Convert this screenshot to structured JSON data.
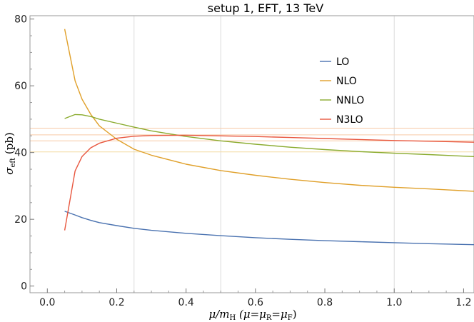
{
  "chart_data": {
    "type": "line",
    "title": "setup 1, EFT, 13 TeV",
    "xlabel_parts": {
      "mu": "μ",
      "slash_m": "/m",
      "sub_H": "H",
      "paren_open": " (μ=μ",
      "sub_R": "R",
      "equals_mu": "=μ",
      "sub_F": "F",
      "paren_close": ")"
    },
    "ylabel_parts": {
      "sigma": "σ",
      "sub_eft": "eft",
      "unit": " (pb)"
    },
    "xlim": [
      -0.05,
      1.23
    ],
    "ylim": [
      -2,
      81
    ],
    "xticks": [
      "0.0",
      "0.2",
      "0.4",
      "0.6",
      "0.8",
      "1.0",
      "1.2"
    ],
    "yticks": [
      "0",
      "20",
      "40",
      "60",
      "80"
    ],
    "vertical_gridlines_x": [
      0.25,
      0.5,
      1.0
    ],
    "horizontal_reference_lines": [
      {
        "y": 47.3,
        "color": "#f7c9a6"
      },
      {
        "y": 45.3,
        "color": "#f7c9a6"
      },
      {
        "y": 43.5,
        "color": "#f7c9a6"
      },
      {
        "y": 40.2,
        "color": "#f3dca2"
      }
    ],
    "legend_position": "top-right",
    "series": [
      {
        "name": "LO",
        "color": "#4a72b0",
        "x": [
          0.05,
          0.08,
          0.1,
          0.125,
          0.15,
          0.2,
          0.25,
          0.3,
          0.4,
          0.5,
          0.6,
          0.7,
          0.8,
          0.9,
          1.0,
          1.1,
          1.23
        ],
        "y": [
          22.4,
          21.3,
          20.5,
          19.7,
          19.0,
          18.1,
          17.3,
          16.7,
          15.8,
          15.1,
          14.5,
          14.0,
          13.6,
          13.3,
          13.0,
          12.7,
          12.4
        ]
      },
      {
        "name": "NLO",
        "color": "#e0a02a",
        "x": [
          0.05,
          0.08,
          0.1,
          0.125,
          0.15,
          0.2,
          0.25,
          0.3,
          0.4,
          0.5,
          0.6,
          0.7,
          0.8,
          0.9,
          1.0,
          1.1,
          1.23
        ],
        "y": [
          77.0,
          61.5,
          56.0,
          51.5,
          48.0,
          44.0,
          41.0,
          39.2,
          36.5,
          34.6,
          33.2,
          32.0,
          31.0,
          30.2,
          29.6,
          29.1,
          28.4
        ]
      },
      {
        "name": "NNLO",
        "color": "#8aab2e",
        "x": [
          0.05,
          0.08,
          0.1,
          0.125,
          0.15,
          0.2,
          0.25,
          0.3,
          0.4,
          0.5,
          0.6,
          0.7,
          0.8,
          0.9,
          1.0,
          1.1,
          1.23
        ],
        "y": [
          50.2,
          51.4,
          51.3,
          50.8,
          50.0,
          48.8,
          47.6,
          46.5,
          44.8,
          43.5,
          42.5,
          41.6,
          40.9,
          40.3,
          39.8,
          39.4,
          38.8
        ]
      },
      {
        "name": "N3LO",
        "color": "#e8563e",
        "x": [
          0.05,
          0.08,
          0.1,
          0.125,
          0.15,
          0.2,
          0.25,
          0.3,
          0.4,
          0.5,
          0.6,
          0.7,
          0.8,
          0.9,
          1.0,
          1.1,
          1.23
        ],
        "y": [
          16.7,
          34.5,
          38.8,
          41.4,
          42.8,
          44.3,
          44.9,
          45.1,
          45.2,
          45.0,
          44.8,
          44.5,
          44.2,
          43.9,
          43.6,
          43.4,
          43.1
        ]
      }
    ]
  }
}
